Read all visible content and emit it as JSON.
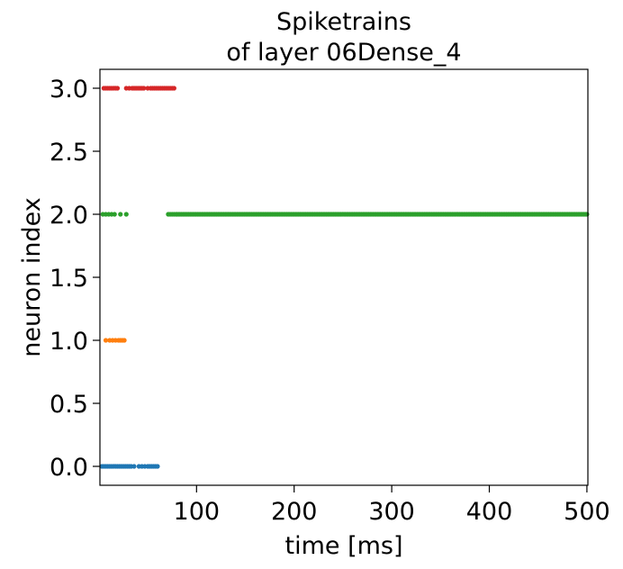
{
  "chart_data": {
    "type": "scatter",
    "title": [
      "Spiketrains",
      "of layer 06Dense_4"
    ],
    "xlabel": "time [ms]",
    "ylabel": "neuron index",
    "xlim": [
      1,
      501
    ],
    "ylim": [
      -0.15,
      3.15
    ],
    "xticks": [
      100,
      200,
      300,
      400,
      500
    ],
    "yticks": [
      0.0,
      0.5,
      1.0,
      1.5,
      2.0,
      2.5,
      3.0
    ],
    "ytick_labels": [
      "0.0",
      "0.5",
      "1.0",
      "1.5",
      "2.0",
      "2.5",
      "3.0"
    ],
    "grid": false,
    "legend": "none",
    "series": [
      {
        "neuron": 0,
        "color": "#1f77b4",
        "spike_times_ms": [
          3,
          5,
          7,
          9,
          11,
          13,
          15,
          17,
          19,
          21,
          23,
          25,
          27,
          29,
          31,
          33,
          36,
          41,
          44,
          47,
          50,
          52,
          54,
          56,
          58,
          60
        ]
      },
      {
        "neuron": 1,
        "color": "#ff7f0e",
        "spike_times_ms": [
          7,
          11,
          14,
          17,
          20,
          22,
          24,
          26
        ]
      },
      {
        "neuron": 2,
        "color": "#2ca02c",
        "spike_times_ms": [
          4,
          7,
          10,
          13,
          16,
          22,
          28,
          71,
          73,
          75,
          77,
          79
        ],
        "spike_ranges_ms": [
          {
            "start": 80,
            "end": 501,
            "step": 1.5
          }
        ]
      },
      {
        "neuron": 3,
        "color": "#d62728",
        "spike_times_ms": [
          5,
          7,
          9,
          11,
          13,
          15,
          17,
          19,
          28,
          31,
          34,
          36,
          38,
          40,
          42,
          44,
          46,
          50,
          53,
          55,
          57,
          59,
          61,
          63,
          65,
          67,
          69,
          71,
          73,
          75,
          77
        ]
      }
    ]
  }
}
